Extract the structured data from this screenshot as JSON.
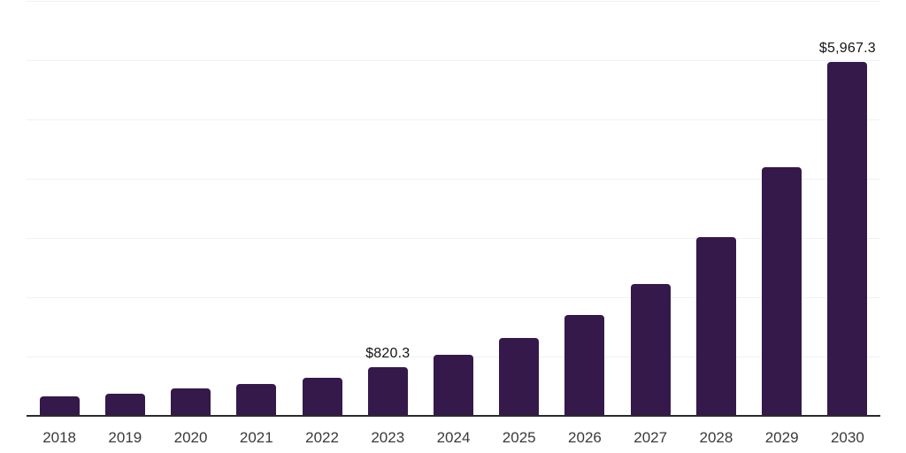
{
  "chart": {
    "background_color": "#ffffff",
    "bar_color": "#34194a",
    "axis_line_color": "#2b2b2b",
    "gridline_color": "#f1f1f3",
    "value_label_color": "#141414",
    "tick_label_color": "#3a3a3a"
  },
  "chart_data": {
    "type": "bar",
    "title": "",
    "xlabel": "",
    "ylabel": "",
    "categories": [
      "2018",
      "2019",
      "2020",
      "2021",
      "2022",
      "2023",
      "2024",
      "2025",
      "2026",
      "2027",
      "2028",
      "2029",
      "2030"
    ],
    "values": [
      330,
      375,
      460,
      535,
      645,
      820.3,
      1030,
      1310,
      1700,
      2230,
      3020,
      4190,
      5967.3
    ],
    "data_labels": [
      "",
      "",
      "",
      "",
      "",
      "$820.3",
      "",
      "",
      "",
      "",
      "",
      "",
      "$5,967.3"
    ],
    "ylim": [
      0,
      7000
    ],
    "gridline_step": 1000,
    "grid": "horizontal",
    "y_axis_labels_visible": false,
    "legend_position": "none"
  }
}
